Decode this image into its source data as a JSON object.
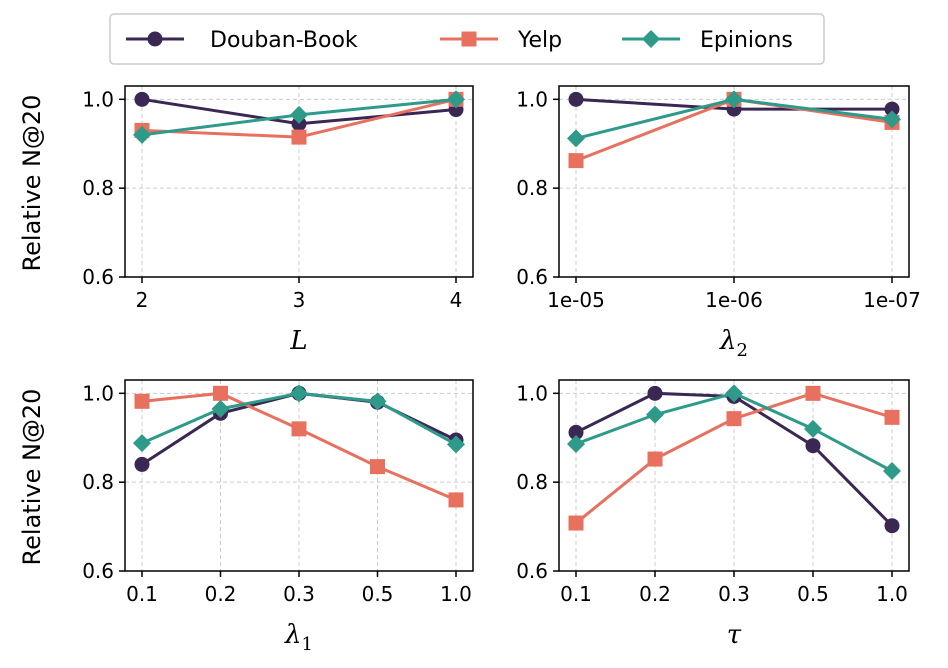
{
  "legend": [
    {
      "name": "Douban-Book",
      "color": "#3a2754",
      "marker": "circle"
    },
    {
      "name": "Yelp",
      "color": "#e8705f",
      "marker": "square"
    },
    {
      "name": "Epinions",
      "color": "#2e9a8a",
      "marker": "diamond"
    }
  ],
  "ylabel": "Relative N@20",
  "chart_data": [
    {
      "type": "line",
      "xlabel": {
        "main": "L",
        "sub": ""
      },
      "categories": [
        "2",
        "3",
        "4"
      ],
      "ylim": [
        0.6,
        1.03
      ],
      "yticks": [
        0.6,
        0.8,
        1.0
      ],
      "ytick_labels": [
        "0.6",
        "0.8",
        "1.0"
      ],
      "grid": true,
      "series": [
        {
          "name": "Douban-Book",
          "values": [
            1.0,
            0.945,
            0.977
          ]
        },
        {
          "name": "Yelp",
          "values": [
            0.93,
            0.915,
            1.0
          ]
        },
        {
          "name": "Epinions",
          "values": [
            0.92,
            0.965,
            1.0
          ]
        }
      ]
    },
    {
      "type": "line",
      "xlabel": {
        "main": "λ",
        "sub": "2"
      },
      "categories": [
        "1e-05",
        "1e-06",
        "1e-07"
      ],
      "ylim": [
        0.6,
        1.03
      ],
      "yticks": [
        0.6,
        0.8,
        1.0
      ],
      "ytick_labels": [
        "0.6",
        "0.8",
        "1.0"
      ],
      "grid": true,
      "series": [
        {
          "name": "Douban-Book",
          "values": [
            1.0,
            0.978,
            0.978
          ]
        },
        {
          "name": "Yelp",
          "values": [
            0.862,
            1.0,
            0.948
          ]
        },
        {
          "name": "Epinions",
          "values": [
            0.912,
            1.0,
            0.955
          ]
        }
      ]
    },
    {
      "type": "line",
      "xlabel": {
        "main": "λ",
        "sub": "1"
      },
      "categories": [
        "0.1",
        "0.2",
        "0.3",
        "0.5",
        "1.0"
      ],
      "ylim": [
        0.6,
        1.03
      ],
      "yticks": [
        0.6,
        0.8,
        1.0
      ],
      "ytick_labels": [
        "0.6",
        "0.8",
        "1.0"
      ],
      "grid": true,
      "series": [
        {
          "name": "Douban-Book",
          "values": [
            0.84,
            0.955,
            1.0,
            0.98,
            0.895
          ]
        },
        {
          "name": "Yelp",
          "values": [
            0.982,
            1.0,
            0.92,
            0.835,
            0.76
          ]
        },
        {
          "name": "Epinions",
          "values": [
            0.888,
            0.965,
            1.0,
            0.982,
            0.885
          ]
        }
      ]
    },
    {
      "type": "line",
      "xlabel": {
        "main": "τ",
        "sub": ""
      },
      "categories": [
        "0.1",
        "0.2",
        "0.3",
        "0.5",
        "1.0"
      ],
      "ylim": [
        0.6,
        1.03
      ],
      "yticks": [
        0.6,
        0.8,
        1.0
      ],
      "ytick_labels": [
        "0.6",
        "0.8",
        "1.0"
      ],
      "grid": true,
      "series": [
        {
          "name": "Douban-Book",
          "values": [
            0.912,
            1.0,
            0.993,
            0.882,
            0.702
          ]
        },
        {
          "name": "Yelp",
          "values": [
            0.708,
            0.852,
            0.943,
            1.0,
            0.946
          ]
        },
        {
          "name": "Epinions",
          "values": [
            0.886,
            0.952,
            1.0,
            0.92,
            0.825
          ]
        }
      ]
    }
  ]
}
